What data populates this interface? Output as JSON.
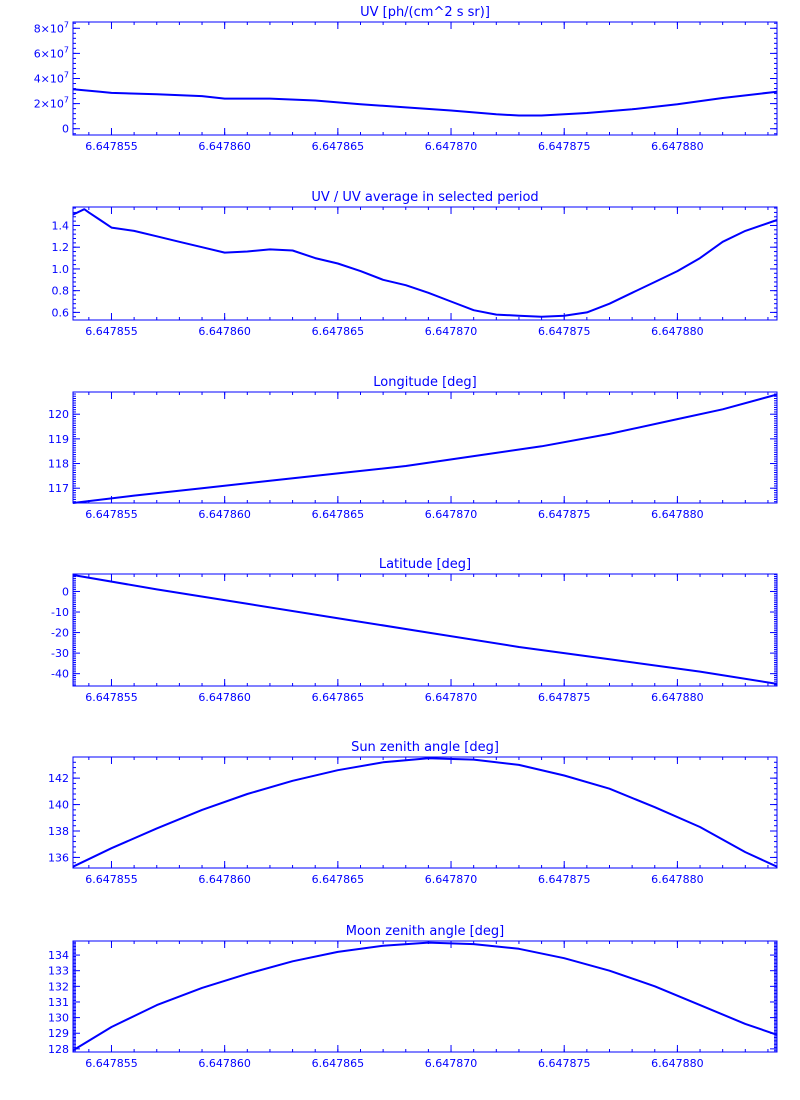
{
  "colors": {
    "ink": "#0000ff",
    "background": "#ffffff"
  },
  "chart_data": [
    {
      "type": "line",
      "title": "UV [ph/(cm^2 s sr)]",
      "xlabel": "",
      "ylabel": "",
      "xlim": [
        6.6478533,
        6.6478844
      ],
      "ylim": [
        -5000000,
        85000000
      ],
      "x_ticks": [
        6.647855,
        6.64786,
        6.647865,
        6.64787,
        6.647875,
        6.64788
      ],
      "x_tick_labels": [
        "6.647855",
        "6.647860",
        "6.647865",
        "6.647870",
        "6.647875",
        "6.647880"
      ],
      "y_ticks": [
        0,
        20000000,
        40000000,
        60000000,
        80000000
      ],
      "y_tick_labels": [
        {
          "text": "0",
          "exp": ""
        },
        {
          "text": "2×10",
          "exp": "7"
        },
        {
          "text": "4×10",
          "exp": "7"
        },
        {
          "text": "6×10",
          "exp": "7"
        },
        {
          "text": "8×10",
          "exp": "7"
        }
      ],
      "minor_ticks": 4,
      "series": [
        {
          "x": [
            6.6478533,
            6.6478545,
            6.647855,
            6.647857,
            6.647859,
            6.64786,
            6.647862,
            6.647864,
            6.647866,
            6.647868,
            6.64787,
            6.647872,
            6.647873,
            6.647874,
            6.647876,
            6.647878,
            6.64788,
            6.647882,
            6.6478844
          ],
          "y": [
            31500000,
            29500000,
            28500000,
            27500000,
            26000000,
            24000000,
            24000000,
            22500000,
            19500000,
            17000000,
            14500000,
            11500000,
            10500000,
            10500000,
            12500000,
            15500000,
            19500000,
            24500000,
            29500000
          ]
        }
      ]
    },
    {
      "type": "line",
      "title": "UV / UV average in selected period",
      "xlabel": "",
      "ylabel": "",
      "xlim": [
        6.6478533,
        6.6478844
      ],
      "ylim": [
        0.53,
        1.57
      ],
      "x_ticks": [
        6.647855,
        6.64786,
        6.647865,
        6.64787,
        6.647875,
        6.64788
      ],
      "x_tick_labels": [
        "6.647855",
        "6.647860",
        "6.647865",
        "6.647870",
        "6.647875",
        "6.647880"
      ],
      "y_ticks": [
        0.6,
        0.8,
        1.0,
        1.2,
        1.4
      ],
      "y_tick_labels": [
        {
          "text": "0.6",
          "exp": ""
        },
        {
          "text": "0.8",
          "exp": ""
        },
        {
          "text": "1.0",
          "exp": ""
        },
        {
          "text": "1.2",
          "exp": ""
        },
        {
          "text": "1.4",
          "exp": ""
        }
      ],
      "minor_ticks": 4,
      "series": [
        {
          "x": [
            6.6478533,
            6.6478538,
            6.647854,
            6.6478545,
            6.647855,
            6.647856,
            6.647857,
            6.647858,
            6.647859,
            6.64786,
            6.647861,
            6.647862,
            6.647863,
            6.647864,
            6.647865,
            6.647866,
            6.647867,
            6.647868,
            6.647869,
            6.64787,
            6.647871,
            6.647872,
            6.647873,
            6.647874,
            6.647875,
            6.647876,
            6.647877,
            6.647878,
            6.647879,
            6.64788,
            6.647881,
            6.647882,
            6.647883,
            6.6478844
          ],
          "y": [
            1.5,
            1.55,
            1.52,
            1.45,
            1.38,
            1.35,
            1.3,
            1.25,
            1.2,
            1.15,
            1.16,
            1.18,
            1.17,
            1.1,
            1.05,
            0.98,
            0.9,
            0.85,
            0.78,
            0.7,
            0.62,
            0.58,
            0.57,
            0.56,
            0.57,
            0.6,
            0.68,
            0.78,
            0.88,
            0.98,
            1.1,
            1.25,
            1.35,
            1.45
          ]
        }
      ]
    },
    {
      "type": "line",
      "title": "Longitude [deg]",
      "xlabel": "",
      "ylabel": "",
      "xlim": [
        6.6478533,
        6.6478844
      ],
      "ylim": [
        116.4,
        120.9
      ],
      "x_ticks": [
        6.647855,
        6.64786,
        6.647865,
        6.64787,
        6.647875,
        6.64788
      ],
      "x_tick_labels": [
        "6.647855",
        "6.647860",
        "6.647865",
        "6.647870",
        "6.647875",
        "6.647880"
      ],
      "y_ticks": [
        117,
        118,
        119,
        120
      ],
      "y_tick_labels": [
        {
          "text": "117",
          "exp": ""
        },
        {
          "text": "118",
          "exp": ""
        },
        {
          "text": "119",
          "exp": ""
        },
        {
          "text": "120",
          "exp": ""
        }
      ],
      "minor_ticks": 10,
      "series": [
        {
          "x": [
            6.6478533,
            6.647856,
            6.647859,
            6.647862,
            6.647865,
            6.647868,
            6.647871,
            6.647874,
            6.647877,
            6.64788,
            6.647882,
            6.6478844
          ],
          "y": [
            116.4,
            116.7,
            117.0,
            117.3,
            117.6,
            117.9,
            118.3,
            118.7,
            119.2,
            119.8,
            120.2,
            120.8
          ]
        }
      ]
    },
    {
      "type": "line",
      "title": "Latitude [deg]",
      "xlabel": "",
      "ylabel": "",
      "xlim": [
        6.6478533,
        6.6478844
      ],
      "ylim": [
        -46,
        8.5
      ],
      "x_ticks": [
        6.647855,
        6.64786,
        6.647865,
        6.64787,
        6.647875,
        6.64788
      ],
      "x_tick_labels": [
        "6.647855",
        "6.647860",
        "6.647865",
        "6.647870",
        "6.647875",
        "6.647880"
      ],
      "y_ticks": [
        -40,
        -30,
        -20,
        -10,
        0
      ],
      "y_tick_labels": [
        {
          "text": "-40",
          "exp": ""
        },
        {
          "text": "-30",
          "exp": ""
        },
        {
          "text": "-20",
          "exp": ""
        },
        {
          "text": "-10",
          "exp": ""
        },
        {
          "text": "0",
          "exp": ""
        }
      ],
      "minor_ticks": 10,
      "series": [
        {
          "x": [
            6.6478533,
            6.647857,
            6.647861,
            6.647865,
            6.647869,
            6.647873,
            6.647877,
            6.647881,
            6.6478844
          ],
          "y": [
            8,
            1,
            -6,
            -13,
            -20,
            -27,
            -33,
            -39,
            -45
          ]
        }
      ]
    },
    {
      "type": "line",
      "title": "Sun zenith angle [deg]",
      "xlabel": "",
      "ylabel": "",
      "xlim": [
        6.6478533,
        6.6478844
      ],
      "ylim": [
        135.2,
        143.6
      ],
      "x_ticks": [
        6.647855,
        6.64786,
        6.647865,
        6.64787,
        6.647875,
        6.64788
      ],
      "x_tick_labels": [
        "6.647855",
        "6.647860",
        "6.647865",
        "6.647870",
        "6.647875",
        "6.647880"
      ],
      "y_ticks": [
        136,
        138,
        140,
        142
      ],
      "y_tick_labels": [
        {
          "text": "136",
          "exp": ""
        },
        {
          "text": "138",
          "exp": ""
        },
        {
          "text": "140",
          "exp": ""
        },
        {
          "text": "142",
          "exp": ""
        }
      ],
      "minor_ticks": 4,
      "series": [
        {
          "x": [
            6.6478533,
            6.647855,
            6.647857,
            6.647859,
            6.647861,
            6.647863,
            6.647865,
            6.647867,
            6.647869,
            6.647871,
            6.647873,
            6.647875,
            6.647877,
            6.647879,
            6.647881,
            6.647883,
            6.6478844
          ],
          "y": [
            135.3,
            136.7,
            138.2,
            139.6,
            140.8,
            141.8,
            142.6,
            143.2,
            143.5,
            143.4,
            143.0,
            142.2,
            141.2,
            139.8,
            138.3,
            136.4,
            135.3
          ]
        }
      ]
    },
    {
      "type": "line",
      "title": "Moon zenith angle [deg]",
      "xlabel": "",
      "ylabel": "",
      "xlim": [
        6.6478533,
        6.6478844
      ],
      "ylim": [
        127.8,
        134.9
      ],
      "x_ticks": [
        6.647855,
        6.64786,
        6.647865,
        6.64787,
        6.647875,
        6.64788
      ],
      "x_tick_labels": [
        "6.647855",
        "6.647860",
        "6.647865",
        "6.647870",
        "6.647875",
        "6.647880"
      ],
      "y_ticks": [
        128,
        129,
        130,
        131,
        132,
        133,
        134
      ],
      "y_tick_labels": [
        {
          "text": "128",
          "exp": ""
        },
        {
          "text": "129",
          "exp": ""
        },
        {
          "text": "130",
          "exp": ""
        },
        {
          "text": "131",
          "exp": ""
        },
        {
          "text": "132",
          "exp": ""
        },
        {
          "text": "133",
          "exp": ""
        },
        {
          "text": "134",
          "exp": ""
        }
      ],
      "minor_ticks": 10,
      "series": [
        {
          "x": [
            6.6478533,
            6.647855,
            6.647857,
            6.647859,
            6.647861,
            6.647863,
            6.647865,
            6.647867,
            6.647869,
            6.647871,
            6.647873,
            6.647875,
            6.647877,
            6.647879,
            6.647881,
            6.647883,
            6.6478844
          ],
          "y": [
            127.9,
            129.4,
            130.8,
            131.9,
            132.8,
            133.6,
            134.2,
            134.6,
            134.8,
            134.7,
            134.4,
            133.8,
            133.0,
            132.0,
            130.8,
            129.6,
            128.9
          ]
        }
      ]
    }
  ]
}
